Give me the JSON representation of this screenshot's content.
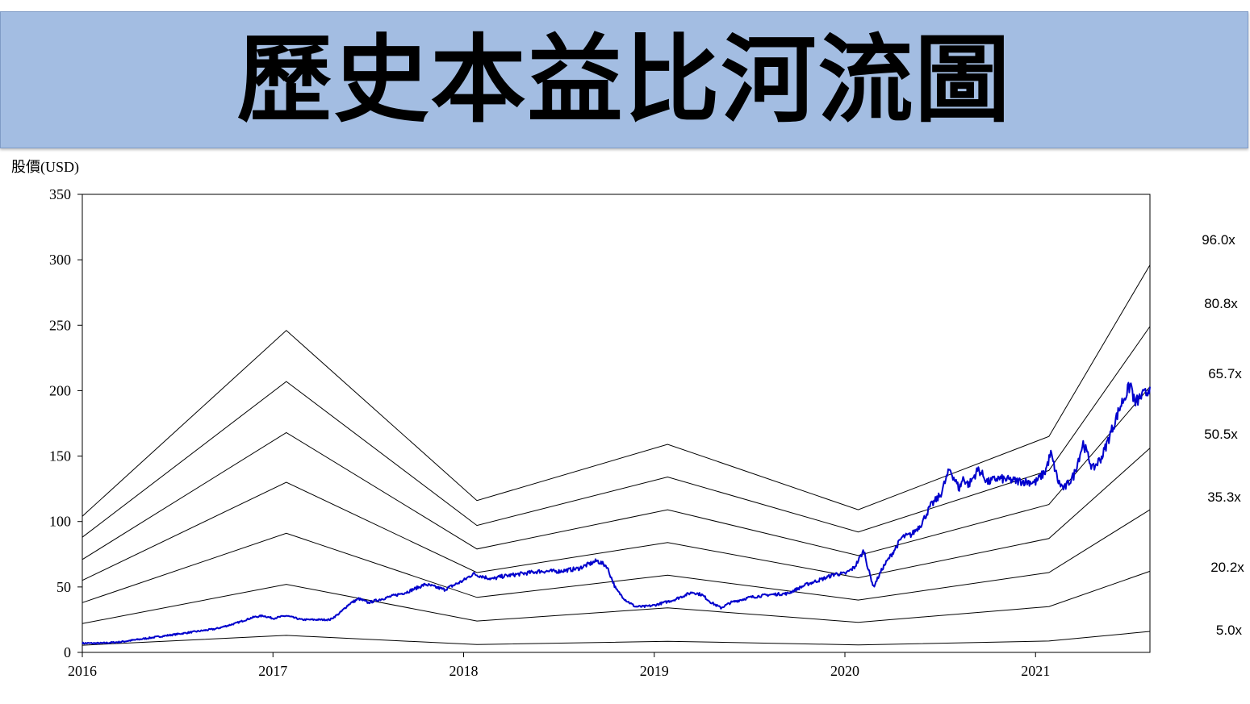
{
  "header": {
    "title": "歷史本益比河流圖"
  },
  "chart_data": {
    "type": "line",
    "title": "歷史本益比河流圖",
    "ylabel": "股價(USD)",
    "xlabel": "",
    "xlim": [
      2016.0,
      2021.6
    ],
    "ylim": [
      0,
      350
    ],
    "x_ticks": [
      "2016",
      "2017",
      "2018",
      "2019",
      "2020",
      "2021"
    ],
    "y_ticks": [
      "0",
      "50",
      "100",
      "150",
      "200",
      "250",
      "300",
      "350"
    ],
    "grid": false,
    "pe_band_labels": [
      "96.0x",
      "80.8x",
      "65.7x",
      "50.5x",
      "35.3x",
      "20.2x",
      "5.0x"
    ],
    "pe_bands": {
      "x": [
        2016.0,
        2017.07,
        2018.07,
        2019.07,
        2020.07,
        2021.07,
        2021.6
      ],
      "series": [
        {
          "name": "96.0x",
          "values": [
            104,
            246,
            116,
            159,
            109,
            165,
            296
          ]
        },
        {
          "name": "80.8x",
          "values": [
            88,
            207,
            97,
            134,
            92,
            139,
            249
          ]
        },
        {
          "name": "65.7x",
          "values": [
            71,
            168,
            79,
            109,
            74,
            113,
            203
          ]
        },
        {
          "name": "50.5x",
          "values": [
            55,
            130,
            61,
            84,
            57,
            87,
            156
          ]
        },
        {
          "name": "35.3x",
          "values": [
            38,
            91,
            42,
            59,
            40,
            61,
            109
          ]
        },
        {
          "name": "20.2x",
          "values": [
            22,
            52,
            24,
            34,
            23,
            35,
            62
          ]
        },
        {
          "name": "5.0x",
          "values": [
            5.5,
            13,
            6,
            8.5,
            5.7,
            8.7,
            16
          ]
        }
      ]
    },
    "price_series": {
      "color": "#0000cc",
      "x": [
        2016.0,
        2016.1,
        2016.2,
        2016.3,
        2016.4,
        2016.5,
        2016.6,
        2016.7,
        2016.8,
        2016.9,
        2016.95,
        2017.0,
        2017.07,
        2017.15,
        2017.2,
        2017.3,
        2017.35,
        2017.4,
        2017.45,
        2017.5,
        2017.6,
        2017.7,
        2017.8,
        2017.9,
        2018.0,
        2018.05,
        2018.1,
        2018.15,
        2018.2,
        2018.3,
        2018.4,
        2018.5,
        2018.6,
        2018.7,
        2018.75,
        2018.8,
        2018.85,
        2018.9,
        2018.95,
        2019.0,
        2019.1,
        2019.2,
        2019.25,
        2019.3,
        2019.35,
        2019.4,
        2019.5,
        2019.6,
        2019.7,
        2019.8,
        2019.9,
        2019.95,
        2020.0,
        2020.05,
        2020.1,
        2020.12,
        2020.15,
        2020.2,
        2020.25,
        2020.3,
        2020.35,
        2020.4,
        2020.45,
        2020.5,
        2020.55,
        2020.6,
        2020.62,
        2020.65,
        2020.7,
        2020.75,
        2020.8,
        2020.9,
        2021.0,
        2021.05,
        2021.08,
        2021.12,
        2021.15,
        2021.2,
        2021.25,
        2021.3,
        2021.35,
        2021.4,
        2021.45,
        2021.5,
        2021.52,
        2021.55,
        2021.58,
        2021.6
      ],
      "values": [
        7,
        7,
        8,
        10,
        12,
        14,
        16,
        18,
        22,
        27,
        28,
        26,
        28,
        25,
        25,
        25,
        30,
        37,
        41,
        38,
        42,
        46,
        52,
        48,
        55,
        60,
        58,
        56,
        58,
        60,
        62,
        62,
        64,
        70,
        66,
        48,
        40,
        35,
        35,
        36,
        40,
        46,
        44,
        38,
        34,
        38,
        42,
        44,
        45,
        52,
        57,
        60,
        60,
        65,
        78,
        65,
        50,
        65,
        76,
        88,
        90,
        98,
        112,
        120,
        140,
        125,
        133,
        128,
        140,
        130,
        133,
        131,
        130,
        138,
        152,
        130,
        125,
        135,
        160,
        140,
        150,
        170,
        190,
        205,
        190,
        195,
        198,
        203
      ]
    }
  }
}
